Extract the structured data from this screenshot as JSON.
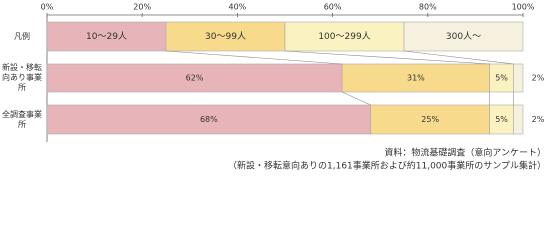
{
  "chart_data": {
    "type": "stacked-bar-horizontal",
    "legend_label": "凡例",
    "categories": [
      "新設・移転\n向あり事業所",
      "全調査事業所"
    ],
    "series": [
      {
        "name": "10〜29人",
        "color": "#e6b4b9",
        "values": [
          62,
          68
        ],
        "value_labels": [
          "62%",
          "68%"
        ]
      },
      {
        "name": "30〜99人",
        "color": "#f7da8c",
        "values": [
          31,
          25
        ],
        "value_labels": [
          "31%",
          "25%"
        ]
      },
      {
        "name": "100〜299人",
        "color": "#fbf2c1",
        "values": [
          5,
          5
        ],
        "value_labels": [
          "5%",
          "5%"
        ]
      },
      {
        "name": "300人〜",
        "color": "#f6f1de",
        "values": [
          2,
          2
        ],
        "value_labels": [
          "2%",
          "2%"
        ]
      }
    ],
    "xlim": [
      0,
      100
    ],
    "xticks": [
      {
        "value": 0,
        "label": "0%"
      },
      {
        "value": 20,
        "label": "20%"
      },
      {
        "value": 40,
        "label": "40%"
      },
      {
        "value": 60,
        "label": "60%"
      },
      {
        "value": 80,
        "label": "80%"
      },
      {
        "value": 100,
        "label": "100%"
      }
    ],
    "notes": [
      "資料：物流基礎調査（意向アンケート）",
      "（新設・移転意向ありの1,161事業所および約11,000事業所のサンプル集計）"
    ]
  }
}
